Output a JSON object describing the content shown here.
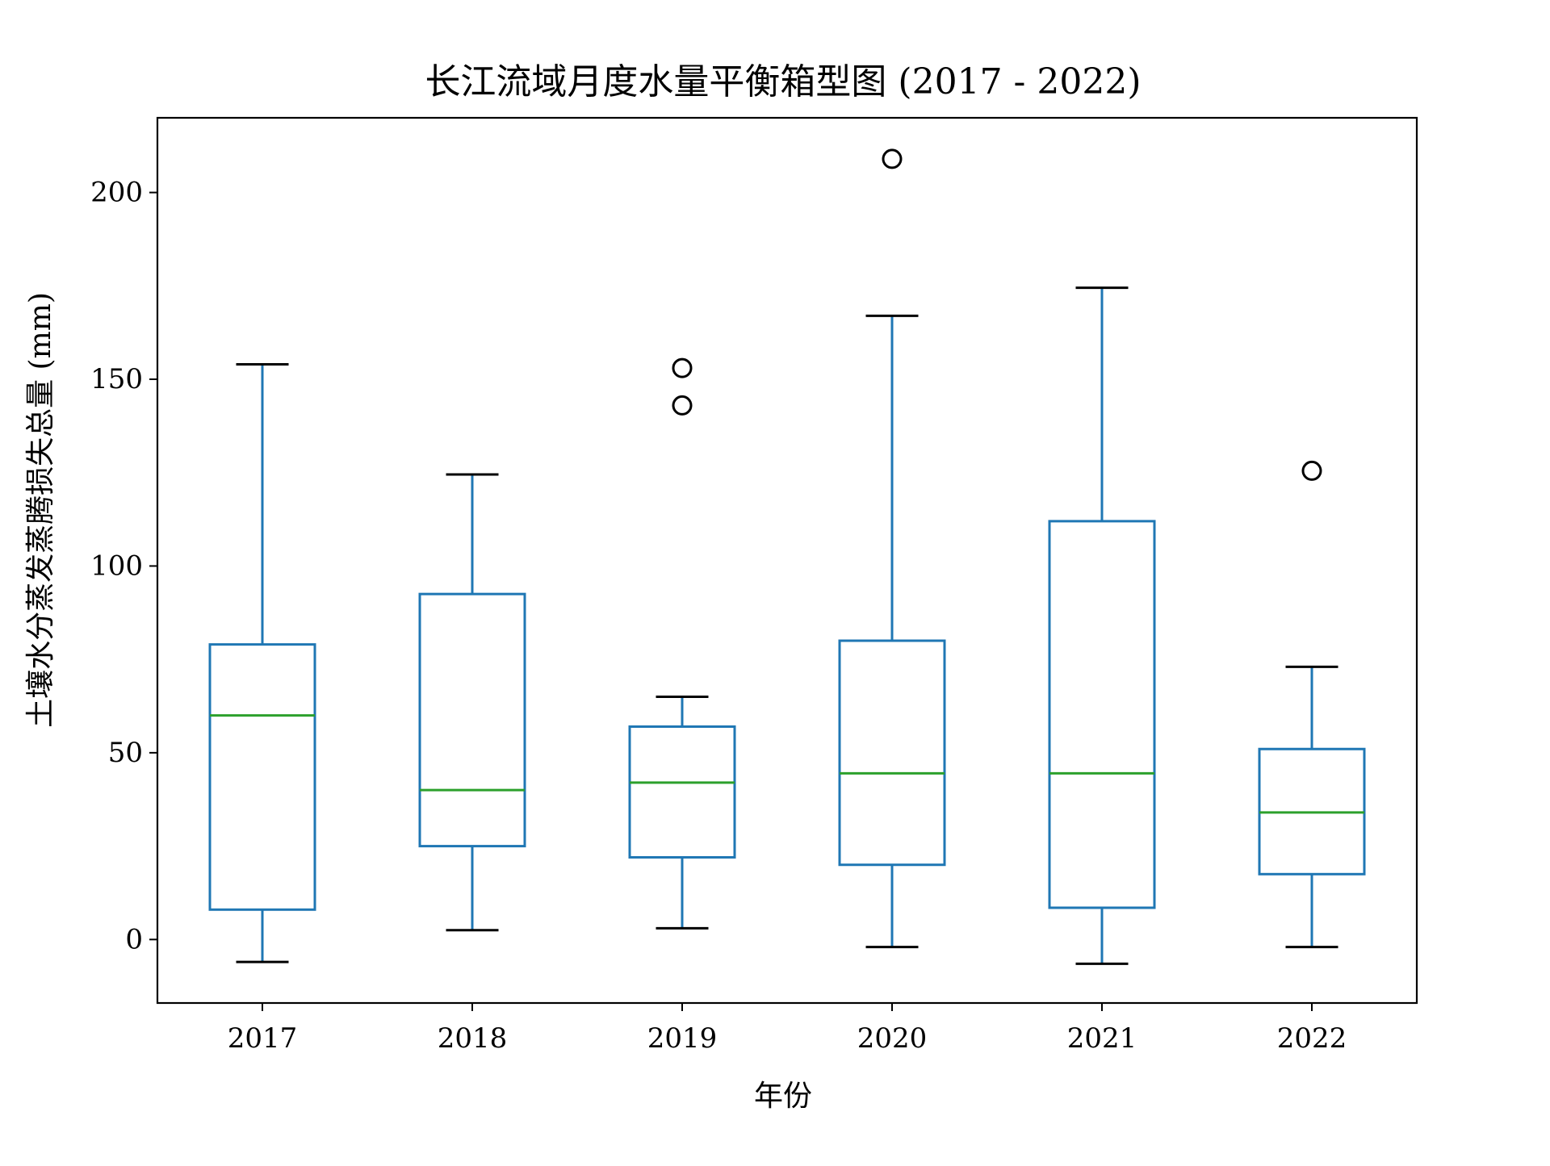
{
  "chart_data": {
    "type": "box",
    "title": "长江流域月度水量平衡箱型图 (2017 - 2022)",
    "xlabel": "年份",
    "ylabel": "土壤水分蒸发蒸腾损失总量 (mm)",
    "ylim": [
      -17,
      220
    ],
    "yticks": [
      0,
      50,
      100,
      150,
      200
    ],
    "grid": false,
    "categories": [
      "2017",
      "2018",
      "2019",
      "2020",
      "2021",
      "2022"
    ],
    "boxes": [
      {
        "category": "2017",
        "whisker_low": -6,
        "q1": 8,
        "median": 60,
        "q3": 79,
        "whisker_high": 154,
        "outliers": []
      },
      {
        "category": "2018",
        "whisker_low": 2.5,
        "q1": 25,
        "median": 40,
        "q3": 92.5,
        "whisker_high": 124.5,
        "outliers": []
      },
      {
        "category": "2019",
        "whisker_low": 3,
        "q1": 22,
        "median": 42,
        "q3": 57,
        "whisker_high": 65,
        "outliers": [
          143,
          153
        ]
      },
      {
        "category": "2020",
        "whisker_low": -2,
        "q1": 20,
        "median": 44.5,
        "q3": 80,
        "whisker_high": 167,
        "outliers": [
          209
        ]
      },
      {
        "category": "2021",
        "whisker_low": -6.5,
        "q1": 8.5,
        "median": 44.5,
        "q3": 112,
        "whisker_high": 174.5,
        "outliers": []
      },
      {
        "category": "2022",
        "whisker_low": -2,
        "q1": 17.5,
        "median": 34,
        "q3": 51,
        "whisker_high": 73,
        "outliers": [
          125.5
        ]
      }
    ],
    "colors": {
      "box": "#1f77b4",
      "median": "#2ca02c",
      "caps": "#000000",
      "outliers": "#000000"
    }
  }
}
